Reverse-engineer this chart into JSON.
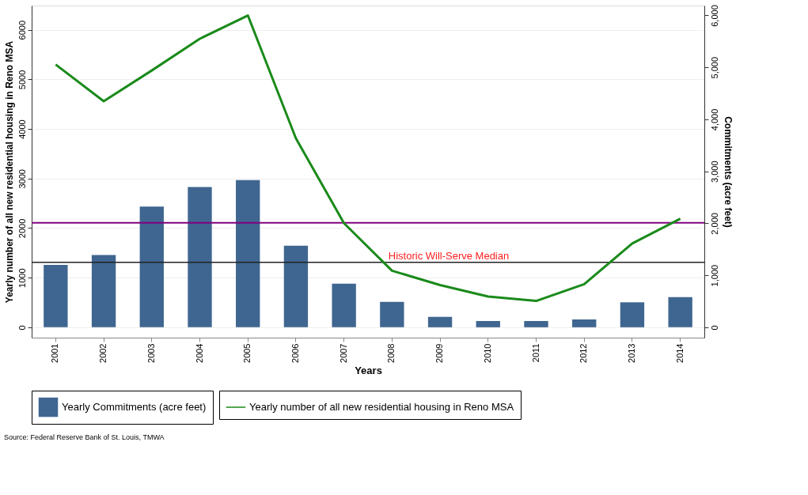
{
  "chart_data": {
    "type": "bar",
    "categories": [
      "2001",
      "2002",
      "2003",
      "2004",
      "2005",
      "2006",
      "2007",
      "2008",
      "2009",
      "2010",
      "2011",
      "2012",
      "2013",
      "2014"
    ],
    "xlabel": "Years",
    "ylabel": "Yearly number of all new residential housing in Reno MSA",
    "y2label": "Commitments (acre feet)",
    "series": [
      {
        "name": "Yearly number of all new residential housing in Reno MSA",
        "type": "line",
        "axis": "y",
        "color": "#1a8a1a",
        "values": [
          5300,
          4560,
          5180,
          5820,
          6290,
          3810,
          2100,
          1140,
          850,
          620,
          530,
          870,
          1690,
          2190
        ]
      },
      {
        "name": "Yearly Commitments (acre feet)",
        "type": "bar",
        "axis": "y2",
        "color": "#3f6690",
        "values": [
          1200,
          1390,
          2320,
          2700,
          2830,
          1570,
          840,
          490,
          200,
          120,
          120,
          150,
          480,
          580
        ]
      }
    ],
    "ylim": [
      -210,
      6490
    ],
    "yticks": [
      0,
      1000,
      2000,
      3000,
      4000,
      5000,
      6000
    ],
    "y2lim": [
      -200,
      6190
    ],
    "y2ticks": [
      {
        "value": 0,
        "label": "0"
      },
      {
        "value": 1000,
        "label": "1,000"
      },
      {
        "value": 2000,
        "label": "2,000"
      },
      {
        "value": 3000,
        "label": "3,000"
      },
      {
        "value": 4000,
        "label": "4,000"
      },
      {
        "value": 5000,
        "label": "5,000"
      },
      {
        "value": 6000,
        "label": "6,000"
      }
    ],
    "ref_lines": [
      {
        "axis": "y2",
        "value": 1250,
        "label": "Historic Will-Serve Median",
        "color": "#222222"
      },
      {
        "axis": "y2",
        "value": 2010,
        "color": "#800080"
      }
    ],
    "grid": "y",
    "legend": "bottom",
    "annotations": [
      "Source: Federal Reserve Bank of St. Louis, TMWA"
    ]
  }
}
